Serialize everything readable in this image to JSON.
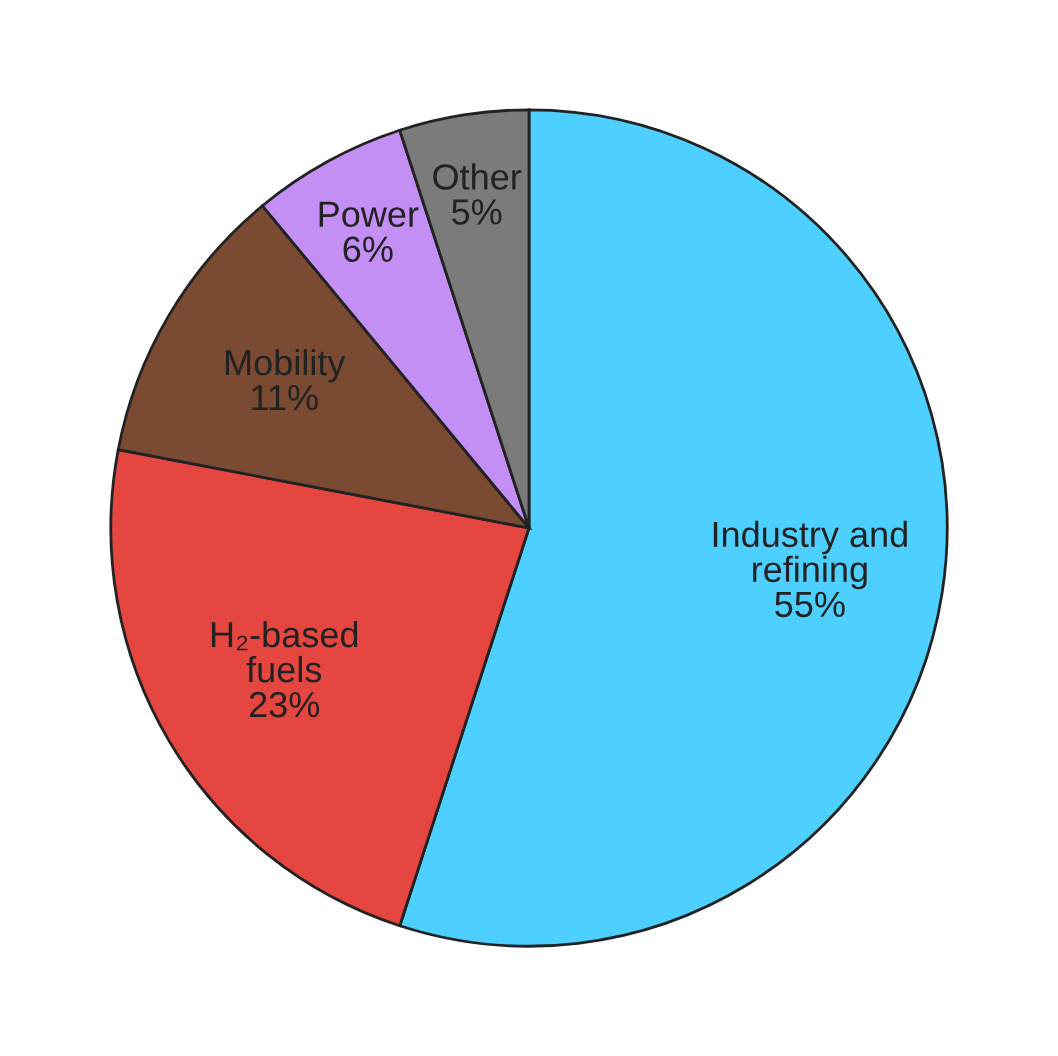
{
  "chart_data": {
    "type": "pie",
    "categories": [
      "Industry and\nrefining",
      "H₂-based\nfuels",
      "Mobility",
      "Power",
      "Other"
    ],
    "values": [
      55,
      23,
      11,
      6,
      5
    ],
    "value_labels": [
      "55%",
      "23%",
      "11%",
      "6%",
      "5%"
    ],
    "colors": [
      "#4dcfff",
      "#e5463f",
      "#7a4a33",
      "#c38ff5",
      "#7b7b7b"
    ]
  }
}
